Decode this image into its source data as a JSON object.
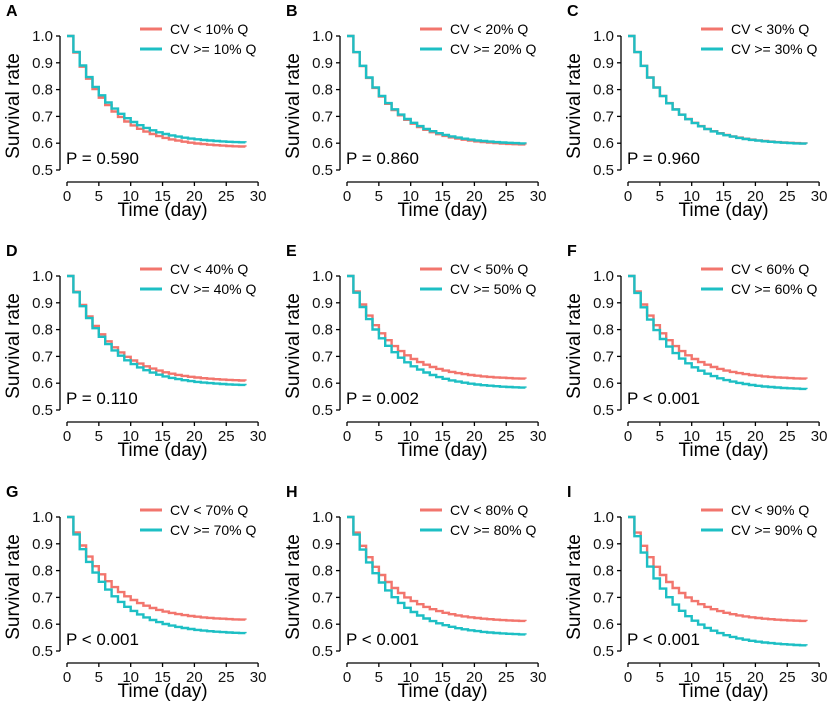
{
  "colors": {
    "low": "#F2756D",
    "high": "#1DBFC4"
  },
  "chart_data": [
    {
      "type": "line",
      "panel": "A",
      "xlabel": "Time (day)",
      "ylabel": "Survival rate",
      "xlim": [
        0,
        30
      ],
      "ylim": [
        0.5,
        1.0
      ],
      "xticks": [
        "0",
        "5",
        "10",
        "15",
        "20",
        "25",
        "30"
      ],
      "yticks": [
        "0.5",
        "0.6",
        "0.7",
        "0.8",
        "0.9",
        "1.0"
      ],
      "pvalue": "P = 0.590",
      "end_day": 28,
      "series": [
        {
          "name": "CV < 10% Q",
          "final": 0.582
        },
        {
          "name": "CV >= 10% Q",
          "final": 0.598
        }
      ]
    },
    {
      "type": "line",
      "panel": "B",
      "xlabel": "Time (day)",
      "ylabel": "Survival rate",
      "xlim": [
        0,
        30
      ],
      "ylim": [
        0.5,
        1.0
      ],
      "xticks": [
        "0",
        "5",
        "10",
        "15",
        "20",
        "25",
        "30"
      ],
      "yticks": [
        "0.5",
        "0.6",
        "0.7",
        "0.8",
        "0.9",
        "1.0"
      ],
      "pvalue": "P = 0.860",
      "end_day": 28,
      "series": [
        {
          "name": "CV < 20% Q",
          "final": 0.59
        },
        {
          "name": "CV >= 20% Q",
          "final": 0.594
        }
      ]
    },
    {
      "type": "line",
      "panel": "C",
      "xlabel": "Time (day)",
      "ylabel": "Survival rate",
      "xlim": [
        0,
        30
      ],
      "ylim": [
        0.5,
        1.0
      ],
      "xticks": [
        "0",
        "5",
        "10",
        "15",
        "20",
        "25",
        "30"
      ],
      "yticks": [
        "0.5",
        "0.6",
        "0.7",
        "0.8",
        "0.9",
        "1.0"
      ],
      "pvalue": "P = 0.960",
      "end_day": 28,
      "series": [
        {
          "name": "CV < 30% Q",
          "final": 0.594
        },
        {
          "name": "CV >= 30% Q",
          "final": 0.593
        }
      ]
    },
    {
      "type": "line",
      "panel": "D",
      "xlabel": "Time (day)",
      "ylabel": "Survival rate",
      "xlim": [
        0,
        30
      ],
      "ylim": [
        0.5,
        1.0
      ],
      "xticks": [
        "0",
        "5",
        "10",
        "15",
        "20",
        "25",
        "30"
      ],
      "yticks": [
        "0.5",
        "0.6",
        "0.7",
        "0.8",
        "0.9",
        "1.0"
      ],
      "pvalue": "P = 0.110",
      "end_day": 28,
      "series": [
        {
          "name": "CV < 40% Q",
          "final": 0.605
        },
        {
          "name": "CV >= 40% Q",
          "final": 0.588
        }
      ]
    },
    {
      "type": "line",
      "panel": "E",
      "xlabel": "Time (day)",
      "ylabel": "Survival rate",
      "xlim": [
        0,
        30
      ],
      "ylim": [
        0.5,
        1.0
      ],
      "xticks": [
        "0",
        "5",
        "10",
        "15",
        "20",
        "25",
        "30"
      ],
      "yticks": [
        "0.5",
        "0.6",
        "0.7",
        "0.8",
        "0.9",
        "1.0"
      ],
      "pvalue": "P = 0.002",
      "end_day": 28,
      "series": [
        {
          "name": "CV < 50% Q",
          "final": 0.612
        },
        {
          "name": "CV >= 50% Q",
          "final": 0.578
        }
      ]
    },
    {
      "type": "line",
      "panel": "F",
      "xlabel": "Time (day)",
      "ylabel": "Survival rate",
      "xlim": [
        0,
        30
      ],
      "ylim": [
        0.5,
        1.0
      ],
      "xticks": [
        "0",
        "5",
        "10",
        "15",
        "20",
        "25",
        "30"
      ],
      "yticks": [
        "0.5",
        "0.6",
        "0.7",
        "0.8",
        "0.9",
        "1.0"
      ],
      "pvalue": "P < 0.001",
      "end_day": 28,
      "series": [
        {
          "name": "CV < 60% Q",
          "final": 0.612
        },
        {
          "name": "CV >= 60% Q",
          "final": 0.573
        }
      ]
    },
    {
      "type": "line",
      "panel": "G",
      "xlabel": "Time (day)",
      "ylabel": "Survival rate",
      "xlim": [
        0,
        30
      ],
      "ylim": [
        0.5,
        1.0
      ],
      "xticks": [
        "0",
        "5",
        "10",
        "15",
        "20",
        "25",
        "30"
      ],
      "yticks": [
        "0.5",
        "0.6",
        "0.7",
        "0.8",
        "0.9",
        "1.0"
      ],
      "pvalue": "P < 0.001",
      "end_day": 28,
      "series": [
        {
          "name": "CV < 70% Q",
          "final": 0.612
        },
        {
          "name": "CV >= 70% Q",
          "final": 0.561
        }
      ]
    },
    {
      "type": "line",
      "panel": "H",
      "xlabel": "Time (day)",
      "ylabel": "Survival rate",
      "xlim": [
        0,
        30
      ],
      "ylim": [
        0.5,
        1.0
      ],
      "xticks": [
        "0",
        "5",
        "10",
        "15",
        "20",
        "25",
        "30"
      ],
      "yticks": [
        "0.5",
        "0.6",
        "0.7",
        "0.8",
        "0.9",
        "1.0"
      ],
      "pvalue": "P < 0.001",
      "end_day": 28,
      "series": [
        {
          "name": "CV < 80% Q",
          "final": 0.607
        },
        {
          "name": "CV >= 80% Q",
          "final": 0.556
        }
      ]
    },
    {
      "type": "line",
      "panel": "I",
      "xlabel": "Time (day)",
      "ylabel": "Survival rate",
      "xlim": [
        0,
        30
      ],
      "ylim": [
        0.5,
        1.0
      ],
      "xticks": [
        "0",
        "5",
        "10",
        "15",
        "20",
        "25",
        "30"
      ],
      "yticks": [
        "0.5",
        "0.6",
        "0.7",
        "0.8",
        "0.9",
        "1.0"
      ],
      "pvalue": "P < 0.001",
      "end_day": 28,
      "series": [
        {
          "name": "CV < 90% Q",
          "final": 0.607
        },
        {
          "name": "CV >= 90% Q",
          "final": 0.515
        }
      ]
    }
  ]
}
